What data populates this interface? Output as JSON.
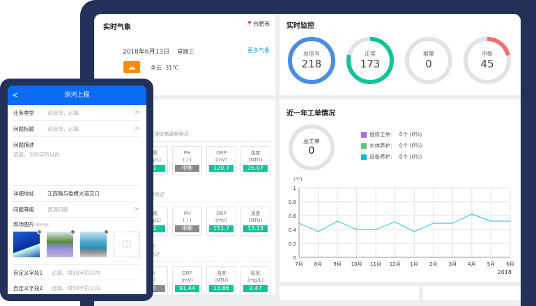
{
  "weather": {
    "title": "实时气象",
    "city": "合肥市",
    "date": "2018年6月13日",
    "weekday": "星期三",
    "more": "更多气象",
    "condition": "多云",
    "temp": "31℃",
    "icon": "partly-cloudy-icon",
    "icon_color": "#ff8a00"
  },
  "monitor": {
    "title": "实时监控",
    "rings": [
      {
        "label": "总信号",
        "value": "218",
        "fraction": 1.0,
        "color": "#4a8ee0"
      },
      {
        "label": "正常",
        "value": "173",
        "fraction": 0.79,
        "color": "#10c49a"
      },
      {
        "label": "报警",
        "value": "0",
        "fraction": 0,
        "color": "#e05050"
      },
      {
        "label": "中断",
        "value": "45",
        "fraction": 0.21,
        "color": "#f07070"
      }
    ]
  },
  "stations": [
    {
      "title": "处理站铁路桥附近",
      "items": [
        {
          "name": "氨氮",
          "unit": "(mg/L)",
          "value": "71",
          "status": "ok"
        },
        {
          "name": "PH",
          "unit": "( / )",
          "value": "中断",
          "status": "off"
        },
        {
          "name": "ORP",
          "unit": "(mV)",
          "value": "120.7",
          "status": "ok"
        },
        {
          "name": "浊度",
          "unit": "(NTU)",
          "value": "26.07",
          "status": "ok"
        }
      ]
    },
    {
      "title": "桥附近",
      "items": [
        {
          "name": "氨氮",
          "unit": "(mg/L)",
          "value": "42",
          "status": "ok"
        },
        {
          "name": "PH",
          "unit": "( / )",
          "value": "中断",
          "status": "off"
        },
        {
          "name": "ORP",
          "unit": "(mV)",
          "value": "151.7",
          "status": "ok"
        },
        {
          "name": "浊度",
          "unit": "(NTU)",
          "value": "13.13",
          "status": "ok"
        }
      ]
    },
    {
      "title": "测",
      "subtitle": "附近",
      "items": [
        {
          "name": "H",
          "unit": "/ )",
          "value": "断",
          "status": "off"
        },
        {
          "name": "ORP",
          "unit": "(mV)",
          "value": "91.44",
          "status": "ok"
        },
        {
          "name": "浊度",
          "unit": "(NTU)",
          "value": "13.86",
          "status": "ok"
        },
        {
          "name": "氨氮",
          "unit": "(mg/L)",
          "value": "2.47",
          "status": "ok"
        }
      ]
    }
  ],
  "workorders": {
    "title": "近一年工单情况",
    "total_label": "总工单",
    "total": "0",
    "legend": [
      {
        "label": "维修工单:",
        "value": "0个 (0%)",
        "color": "#a070d8"
      },
      {
        "label": "水体养护:",
        "value": "0个 (0%)",
        "color": "#6fbf7f"
      },
      {
        "label": "设备养护:",
        "value": "0个 (0%)",
        "color": "#00c0e0"
      }
    ]
  },
  "chart_data": {
    "type": "line",
    "ylabel": "(个)",
    "ylim": [
      0,
      1
    ],
    "yticks": [
      "0",
      "0.2",
      "0.4",
      "0.6",
      "0.8",
      "1"
    ],
    "categories": [
      "7月",
      "8月",
      "9月",
      "10月",
      "11月",
      "12月",
      "1月",
      "2月",
      "3月",
      "4月",
      "5月",
      "6月"
    ],
    "values": [
      0.49,
      0.37,
      0.52,
      0.4,
      0.4,
      0.51,
      0.37,
      0.49,
      0.49,
      0.62,
      0.52,
      0.52
    ],
    "year_label": "2018",
    "color": "#3cc8e8",
    "grid": true
  },
  "phone": {
    "title": "巡河上报",
    "back": "<",
    "fields": [
      {
        "label": "业务类型",
        "placeholder": "请选择，必填",
        "chevron": true
      },
      {
        "label": "问题标题",
        "placeholder": "请选择，必填",
        "chevron": true
      }
    ],
    "desc_label": "问题描述",
    "desc_placeholder": "选填，300字符以内",
    "address_label": "详细地址",
    "address_value": "江西路与香樟大道交口",
    "level_label": "问题等级",
    "level_placeholder": "普通问题",
    "photos_label": "现场图片",
    "photos_hint": "(限传4张)",
    "custom": [
      {
        "label": "自定义字段1",
        "placeholder": "必填，限50字符以内"
      },
      {
        "label": "自定义字段2",
        "placeholder": "选填，限50字符以内"
      }
    ]
  }
}
